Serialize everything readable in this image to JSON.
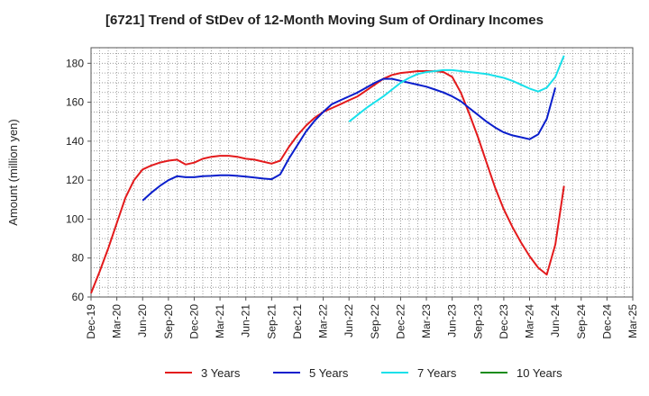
{
  "chart_data": {
    "type": "line",
    "title": "[6721]  Trend of StDev of 12-Month Moving Sum of Ordinary Incomes",
    "xlabel": "",
    "ylabel": "Amount (million yen)",
    "ylim": [
      60,
      188
    ],
    "yticks": [
      60,
      80,
      100,
      120,
      140,
      160,
      180
    ],
    "x_categories": [
      "Dec-19",
      "Mar-20",
      "Jun-20",
      "Sep-20",
      "Dec-20",
      "Mar-21",
      "Jun-21",
      "Sep-21",
      "Dec-21",
      "Mar-22",
      "Jun-22",
      "Sep-22",
      "Dec-22",
      "Mar-23",
      "Jun-23",
      "Sep-23",
      "Dec-23",
      "Mar-24",
      "Jun-24",
      "Sep-24",
      "Dec-24",
      "Mar-25"
    ],
    "grid": true,
    "legend_position": "bottom",
    "series": [
      {
        "name": "3 Years",
        "color": "#e31a1c",
        "start_index": 0,
        "values": [
          62,
          73,
          85,
          98,
          111,
          120,
          125.5,
          127.5,
          129,
          130,
          130.5,
          128,
          129,
          131,
          132,
          132.5,
          132.5,
          132,
          131,
          130.5,
          129.5,
          128.5,
          130,
          137,
          143,
          148,
          152,
          155,
          157,
          159,
          161,
          163,
          166,
          169,
          172,
          174,
          175,
          175.5,
          176,
          176,
          176,
          175.5,
          173,
          165,
          154,
          142,
          129,
          116,
          105,
          96,
          88,
          81,
          75,
          71.5,
          87,
          117
        ]
      },
      {
        "name": "5 Years",
        "color": "#0a1ecc",
        "start_index": 6,
        "values": [
          109.5,
          113.5,
          117,
          120,
          122,
          121.5,
          121.5,
          122,
          122.2,
          122.5,
          122.5,
          122.2,
          121.8,
          121.3,
          120.8,
          120.5,
          123,
          131,
          138,
          145,
          150.5,
          155,
          159,
          161,
          163,
          165,
          167.5,
          170,
          172,
          172,
          171,
          170,
          169,
          168,
          166.5,
          165,
          163,
          160.5,
          157,
          153.5,
          150,
          147,
          144.5,
          143,
          142,
          141,
          143.5,
          151.5,
          167.5
        ]
      },
      {
        "name": "7 Years",
        "color": "#17e0ea",
        "start_index": 30,
        "values": [
          150,
          153.5,
          157,
          160,
          163,
          166.5,
          170,
          172.5,
          174.5,
          175.5,
          176,
          176.5,
          176.5,
          176,
          175.5,
          175,
          174.5,
          173.5,
          172.5,
          171,
          169,
          167,
          165.5,
          167.5,
          173,
          184
        ]
      },
      {
        "name": "10 Years",
        "color": "#1a8c1a",
        "start_index": 0,
        "values": []
      }
    ]
  }
}
